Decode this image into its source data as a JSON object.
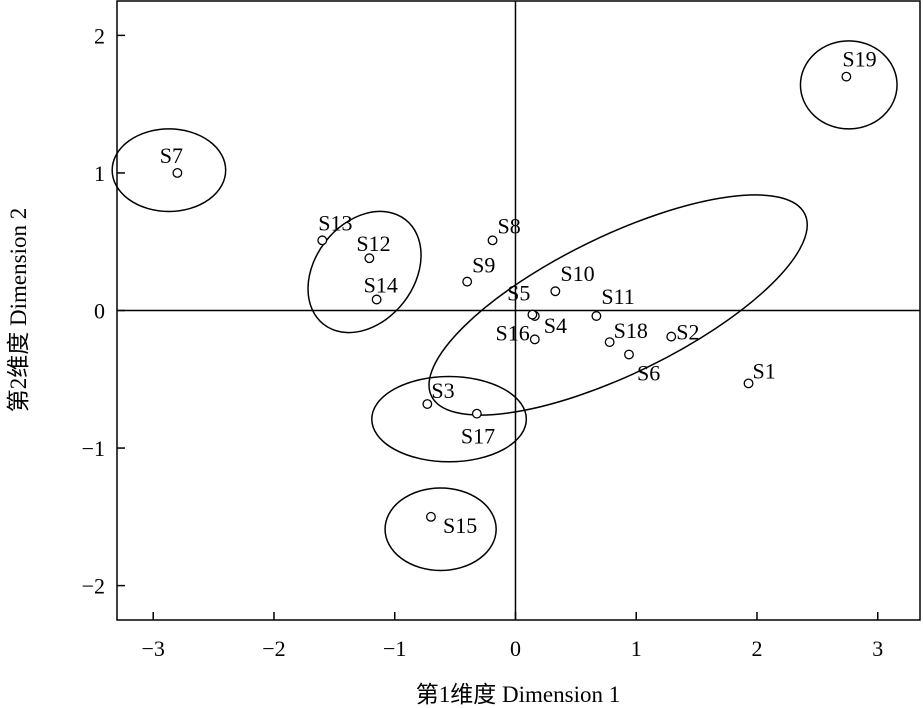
{
  "chart_data": {
    "type": "scatter",
    "title": "",
    "xlabel": "第1维度 Dimension 1",
    "ylabel": "第2维度 Dimension 2",
    "xlim": [
      -3.3,
      3.35
    ],
    "ylim": [
      -2.25,
      2.25
    ],
    "x_ticks": [
      -3,
      -2,
      -1,
      0,
      1,
      2,
      3
    ],
    "y_ticks": [
      -2,
      -1,
      0,
      1,
      2
    ],
    "x_tick_labels": [
      "−3",
      "−2",
      "−1",
      "0",
      "1",
      "2",
      "3"
    ],
    "y_tick_labels": [
      "−2",
      "−1",
      "0",
      "1",
      "2"
    ],
    "reference_lines": {
      "x": 0,
      "y": 0
    },
    "points": [
      {
        "label": "S1",
        "x": 1.93,
        "y": -0.53
      },
      {
        "label": "S2",
        "x": 1.29,
        "y": -0.19
      },
      {
        "label": "S3",
        "x": -0.73,
        "y": -0.68
      },
      {
        "label": "S4",
        "x": 0.16,
        "y": -0.04
      },
      {
        "label": "S5",
        "x": 0.14,
        "y": -0.03
      },
      {
        "label": "S6",
        "x": 0.94,
        "y": -0.32
      },
      {
        "label": "S7",
        "x": -2.8,
        "y": 1.0
      },
      {
        "label": "S8",
        "x": -0.19,
        "y": 0.51
      },
      {
        "label": "S9",
        "x": -0.4,
        "y": 0.21
      },
      {
        "label": "S10",
        "x": 0.33,
        "y": 0.14
      },
      {
        "label": "S11",
        "x": 0.67,
        "y": -0.04
      },
      {
        "label": "S12",
        "x": -1.21,
        "y": 0.38
      },
      {
        "label": "S13",
        "x": -1.6,
        "y": 0.51
      },
      {
        "label": "S14",
        "x": -1.15,
        "y": 0.08
      },
      {
        "label": "S15",
        "x": -0.7,
        "y": -1.5
      },
      {
        "label": "S16",
        "x": 0.16,
        "y": -0.21
      },
      {
        "label": "S17",
        "x": -0.32,
        "y": -0.75
      },
      {
        "label": "S18",
        "x": 0.78,
        "y": -0.23
      },
      {
        "label": "S19",
        "x": 2.74,
        "y": 1.7
      }
    ],
    "clusters": [
      {
        "members": [
          "S7"
        ],
        "cx": -2.87,
        "cy": 1.02,
        "rx": 0.47,
        "ry": 0.3,
        "angle": 0
      },
      {
        "members": [
          "S12",
          "S13",
          "S14"
        ],
        "cx": -1.25,
        "cy": 0.28,
        "rx": 0.55,
        "ry": 0.36,
        "angle": -52
      },
      {
        "members": [
          "S1",
          "S2",
          "S4",
          "S5",
          "S6",
          "S8",
          "S9",
          "S10",
          "S11",
          "S16",
          "S18"
        ],
        "cx": 0.85,
        "cy": 0.04,
        "rx": 1.72,
        "ry": 0.5,
        "angle": -26
      },
      {
        "members": [
          "S3",
          "S17"
        ],
        "cx": -0.55,
        "cy": -0.79,
        "rx": 0.64,
        "ry": 0.31,
        "angle": 0
      },
      {
        "members": [
          "S15"
        ],
        "cx": -0.62,
        "cy": -1.59,
        "rx": 0.46,
        "ry": 0.3,
        "angle": 0
      },
      {
        "members": [
          "S19"
        ],
        "cx": 2.76,
        "cy": 1.64,
        "rx": 0.4,
        "ry": 0.32,
        "angle": 0
      }
    ],
    "grid": false,
    "legend": "none"
  }
}
